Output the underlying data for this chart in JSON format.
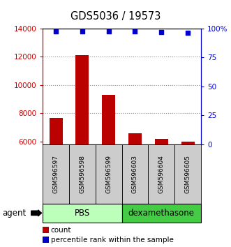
{
  "title": "GDS5036 / 19573",
  "samples": [
    "GSM596597",
    "GSM596598",
    "GSM596599",
    "GSM596603",
    "GSM596604",
    "GSM596605"
  ],
  "counts": [
    7700,
    12100,
    9300,
    6600,
    6200,
    6000
  ],
  "percentiles": [
    97.5,
    97.5,
    97.5,
    97.5,
    97.0,
    96.5
  ],
  "ylim_left": [
    5800,
    14000
  ],
  "ylim_right": [
    0,
    100
  ],
  "yticks_left": [
    6000,
    8000,
    10000,
    12000,
    14000
  ],
  "yticks_right": [
    0,
    25,
    50,
    75,
    100
  ],
  "ytick_labels_right": [
    "0",
    "25",
    "50",
    "75",
    "100%"
  ],
  "bar_color": "#bb0000",
  "square_color": "#0000cc",
  "group_labels": [
    "PBS",
    "dexamethasone"
  ],
  "group_colors": [
    "#bbffbb",
    "#44cc44"
  ],
  "sample_box_color": "#cccccc",
  "agent_label": "agent",
  "legend_count_label": "count",
  "legend_percentile_label": "percentile rank within the sample",
  "axis_color_left": "#cc0000",
  "axis_color_right": "#0000cc",
  "grid_color": "#888888",
  "plot_bg": "#ffffff"
}
